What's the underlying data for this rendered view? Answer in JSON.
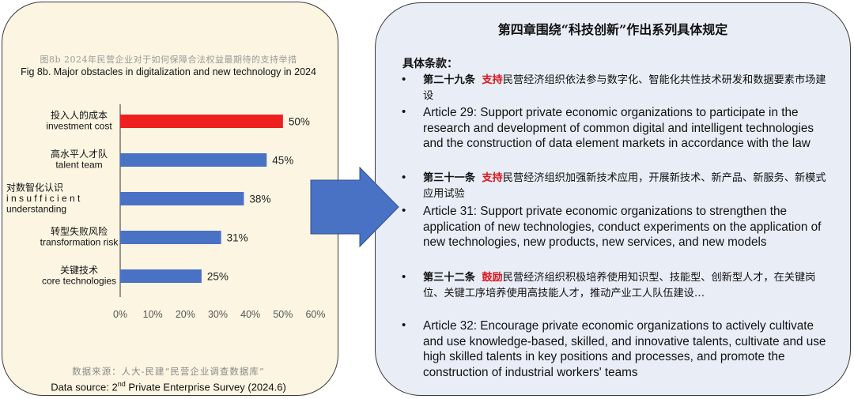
{
  "left_panel": {
    "chart_title_cn": "图8b 2024年民营企业对于如何保障合法权益最期待的支持举措",
    "chart_title_en": "Fig 8b. Major obstacles in digitalization and new technology in 2024",
    "source_cn": "数据来源：人大-民建“民营企业调查数据库”",
    "source_en_prefix": "Data source: 2",
    "source_en_sup": "nd",
    "source_en_suffix": " Private Enterprise Survey (2024.6)"
  },
  "chart_data": {
    "type": "bar",
    "orientation": "horizontal",
    "categories": [
      {
        "label_cn": "投入人的成本",
        "label_en": [
          "investment cost"
        ]
      },
      {
        "label_cn": "高水平人才队",
        "label_en": [
          "talent team"
        ]
      },
      {
        "label_cn": "对数智化认识",
        "label_en": [
          "i n s u f f i c i e n t",
          "understanding"
        ]
      },
      {
        "label_cn": "转型失败风险",
        "label_en": [
          "transformation risk"
        ]
      },
      {
        "label_cn": "关键技术",
        "label_en": [
          "core technologies"
        ]
      }
    ],
    "values": [
      50,
      45,
      38,
      31,
      25
    ],
    "value_labels": [
      "50%",
      "45%",
      "38%",
      "31%",
      "25%"
    ],
    "highlight_index": 0,
    "highlight_color": "#ee1f1f",
    "bar_color": "#4a72c4",
    "xlim": [
      0,
      60
    ],
    "xticks": [
      "0%",
      "10%",
      "20%",
      "30%",
      "40%",
      "50%",
      "60%"
    ],
    "grid": false
  },
  "right_panel": {
    "title": "第四章围绕“科技创新”作出系列具体规定",
    "subtitle": "具体条款：",
    "bullet": "•",
    "items": [
      {
        "article": "第二十九条",
        "keyword": "支持",
        "cn_rest": "民营经济组织依法参与数字化、智能化共性技术研发和数据要素市场建设"
      },
      {
        "en": "Article 29: Support private economic organizations to participate in the research and development of common digital and intelligent technologies and the construction of data element markets in accordance with the law"
      },
      {
        "article": "第三十一条",
        "keyword": "支持",
        "cn_rest": "民营经济组织加强新技术应用，开展新技术、新产品、新服务、新模式应用试验"
      },
      {
        "en": "Article 31: Support private economic organizations to strengthen the application of new technologies, conduct experiments on the application of new technologies, new products, new services, and new models"
      },
      {
        "article": "第三十二条",
        "keyword": "鼓励",
        "cn_rest": "民营经济组织积极培养使用知识型、技能型、创新型人才，在关键岗位、关键工序培养使用高技能人才，推动产业工人队伍建设…"
      },
      {
        "en": "Article 32: Encourage private economic organizations to actively cultivate and use knowledge-based, skilled, and innovative talents, cultivate and use high skilled talents in key positions and processes, and promote the construction of industrial workers' teams"
      }
    ]
  },
  "colors": {
    "left_bg": "#fbf5e2",
    "right_bg": "#e8edf6",
    "arrow": "#4a72c4",
    "accent_red": "#e0141b"
  }
}
